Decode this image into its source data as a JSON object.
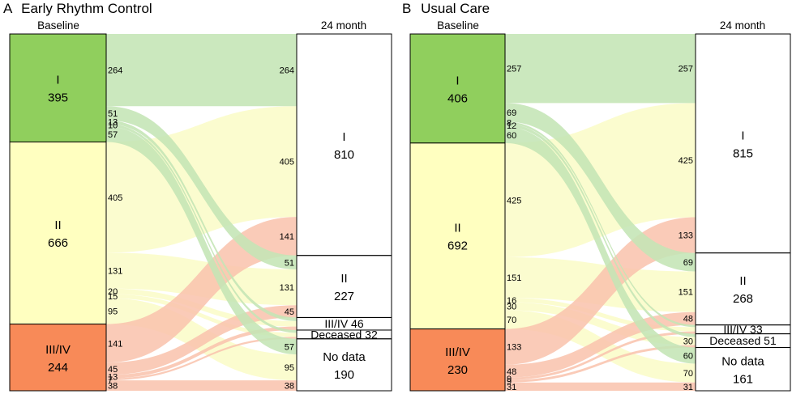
{
  "chart_data": [
    {
      "type": "sankey",
      "panel_letter": "A",
      "title": "Early Rhythm Control",
      "left_header": "Baseline",
      "right_header": "24 month",
      "colors": {
        "I": "#90cf5d",
        "II": "#ffffc0",
        "III/IV": "#f88a58",
        "Deceased": "#ffffff",
        "No data": "#ffffff"
      },
      "flow_colors": {
        "I": "#c4e5b5",
        "II": "#fafcc8",
        "III/IV": "#f9c4ae"
      },
      "left_nodes": [
        {
          "id": "I",
          "label": "I",
          "value": 395
        },
        {
          "id": "II",
          "label": "II",
          "value": 666
        },
        {
          "id": "III/IV",
          "label": "III/IV",
          "value": 244
        }
      ],
      "right_nodes": [
        {
          "id": "I",
          "label": "I",
          "value": 810,
          "inline": false
        },
        {
          "id": "II",
          "label": "II",
          "value": 227,
          "inline": false
        },
        {
          "id": "III/IV",
          "label": "III/IV",
          "value": 46,
          "inline": true
        },
        {
          "id": "Deceased",
          "label": "Deceased",
          "value": 32,
          "inline": true
        },
        {
          "id": "No data",
          "label": "No data",
          "value": 190,
          "inline": false
        }
      ],
      "flows": [
        {
          "from": "I",
          "to": "I",
          "value": 264
        },
        {
          "from": "I",
          "to": "II",
          "value": 51
        },
        {
          "from": "I",
          "to": "III/IV",
          "value": 13
        },
        {
          "from": "I",
          "to": "Deceased",
          "value": 10
        },
        {
          "from": "I",
          "to": "No data",
          "value": 57
        },
        {
          "from": "II",
          "to": "I",
          "value": 405
        },
        {
          "from": "II",
          "to": "II",
          "value": 131
        },
        {
          "from": "II",
          "to": "III/IV",
          "value": 20
        },
        {
          "from": "II",
          "to": "Deceased",
          "value": 15
        },
        {
          "from": "II",
          "to": "No data",
          "value": 95
        },
        {
          "from": "III/IV",
          "to": "I",
          "value": 141
        },
        {
          "from": "III/IV",
          "to": "II",
          "value": 45
        },
        {
          "from": "III/IV",
          "to": "III/IV",
          "value": 13
        },
        {
          "from": "III/IV",
          "to": "Deceased",
          "value": 7
        },
        {
          "from": "III/IV",
          "to": "No data",
          "value": 38
        }
      ],
      "left_flow_labels": [
        "264",
        "51",
        "13",
        "10",
        "57",
        "405",
        "131",
        "20",
        "15",
        "95",
        "141",
        "45",
        "13",
        "7",
        "38"
      ],
      "right_flow_labels": [
        "264",
        "405",
        "141",
        "51",
        "131",
        "45",
        "57",
        "95",
        "38"
      ]
    },
    {
      "type": "sankey",
      "panel_letter": "B",
      "title": "Usual Care",
      "left_header": "Baseline",
      "right_header": "24 month",
      "colors": {
        "I": "#90cf5d",
        "II": "#ffffc0",
        "III/IV": "#f88a58",
        "Deceased": "#ffffff",
        "No data": "#ffffff"
      },
      "flow_colors": {
        "I": "#c4e5b5",
        "II": "#fafcc8",
        "III/IV": "#f9c4ae"
      },
      "left_nodes": [
        {
          "id": "I",
          "label": "I",
          "value": 406
        },
        {
          "id": "II",
          "label": "II",
          "value": 692
        },
        {
          "id": "III/IV",
          "label": "III/IV",
          "value": 230
        }
      ],
      "right_nodes": [
        {
          "id": "I",
          "label": "I",
          "value": 815,
          "inline": false
        },
        {
          "id": "II",
          "label": "II",
          "value": 268,
          "inline": false
        },
        {
          "id": "III/IV",
          "label": "III/IV",
          "value": 33,
          "inline": true
        },
        {
          "id": "Deceased",
          "label": "Deceased",
          "value": 51,
          "inline": true
        },
        {
          "id": "No data",
          "label": "No data",
          "value": 161,
          "inline": false
        }
      ],
      "flows": [
        {
          "from": "I",
          "to": "I",
          "value": 257
        },
        {
          "from": "I",
          "to": "II",
          "value": 69
        },
        {
          "from": "I",
          "to": "III/IV",
          "value": 8
        },
        {
          "from": "I",
          "to": "Deceased",
          "value": 12
        },
        {
          "from": "I",
          "to": "No data",
          "value": 60
        },
        {
          "from": "II",
          "to": "I",
          "value": 425
        },
        {
          "from": "II",
          "to": "II",
          "value": 151
        },
        {
          "from": "II",
          "to": "III/IV",
          "value": 16
        },
        {
          "from": "II",
          "to": "Deceased",
          "value": 30
        },
        {
          "from": "II",
          "to": "No data",
          "value": 70
        },
        {
          "from": "III/IV",
          "to": "I",
          "value": 133
        },
        {
          "from": "III/IV",
          "to": "II",
          "value": 48
        },
        {
          "from": "III/IV",
          "to": "III/IV",
          "value": 9
        },
        {
          "from": "III/IV",
          "to": "Deceased",
          "value": 9
        },
        {
          "from": "III/IV",
          "to": "No data",
          "value": 31
        }
      ],
      "left_flow_labels": [
        "257",
        "69",
        "8",
        "12",
        "60",
        "425",
        "151",
        "16",
        "30",
        "70",
        "133",
        "48",
        "9",
        "9",
        "31"
      ],
      "right_flow_labels": [
        "257",
        "425",
        "133",
        "69",
        "151",
        "48",
        "30",
        "60",
        "70",
        "31"
      ]
    }
  ]
}
